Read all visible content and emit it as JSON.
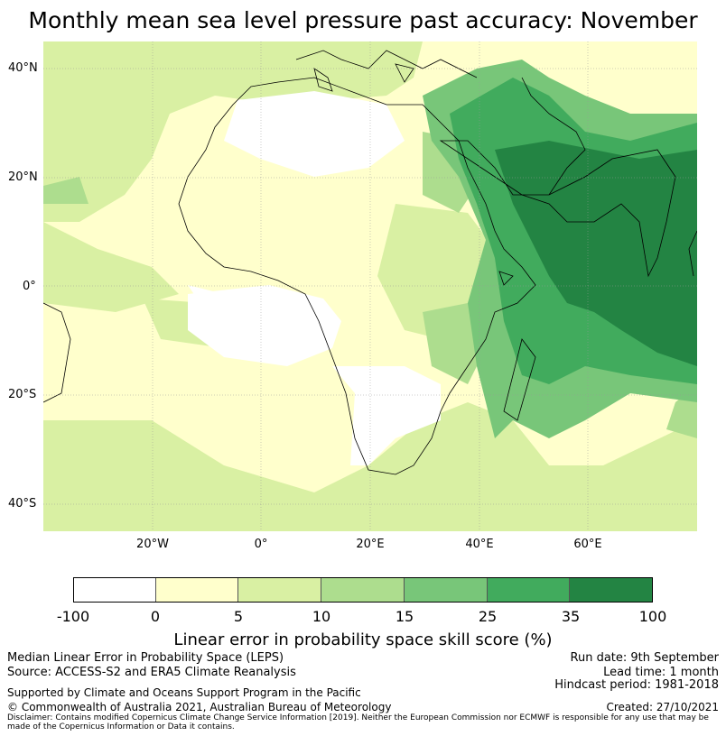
{
  "title": "Monthly mean sea level pressure past accuracy: November",
  "map": {
    "lat_labels": [
      {
        "text": "40°N",
        "lat": 40
      },
      {
        "text": "20°N",
        "lat": 20
      },
      {
        "text": "0°",
        "lat": 0
      },
      {
        "text": "20°S",
        "lat": -20
      },
      {
        "text": "40°S",
        "lat": -40
      }
    ],
    "lon_labels": [
      {
        "text": "20°W",
        "lon": -20
      },
      {
        "text": "0°",
        "lon": 0
      },
      {
        "text": "20°E",
        "lon": 20
      },
      {
        "text": "40°E",
        "lon": 40
      },
      {
        "text": "60°E",
        "lon": 60
      }
    ],
    "extent": {
      "lon_min": -40,
      "lon_max": 80,
      "lat_min": -45,
      "lat_max": 45
    }
  },
  "colorbar": {
    "ticks": [
      "-100",
      "0",
      "5",
      "10",
      "15",
      "25",
      "35",
      "100"
    ],
    "colors": [
      "#ffffff",
      "#ffffcc",
      "#d9f0a3",
      "#addd8e",
      "#78c679",
      "#41ab5d",
      "#238443"
    ],
    "label": "Linear error in probability space skill score (%)"
  },
  "info": {
    "method": "Median Linear Error in Probability Space (LEPS)",
    "source": "Source: ACCESS-S2 and ERA5 Climate Reanalysis",
    "run_date": "Run date: 9th September",
    "lead_time": "Lead time: 1 month",
    "hindcast": "Hindcast period: 1981-2018",
    "support": "Supported by Climate and Oceans Support Program in the Pacific",
    "copyright": "© Commonwealth of Australia 2021, Australian Bureau of Meteorology",
    "created": "Created: 27/10/2021",
    "disclaimer": "Disclaimer: Contains modified Copernicus Climate Change Service Information [2019]. Neither the European Commission nor ECMWF is responsible for any use that may be made of the Copernicus Information or Data it contains."
  }
}
